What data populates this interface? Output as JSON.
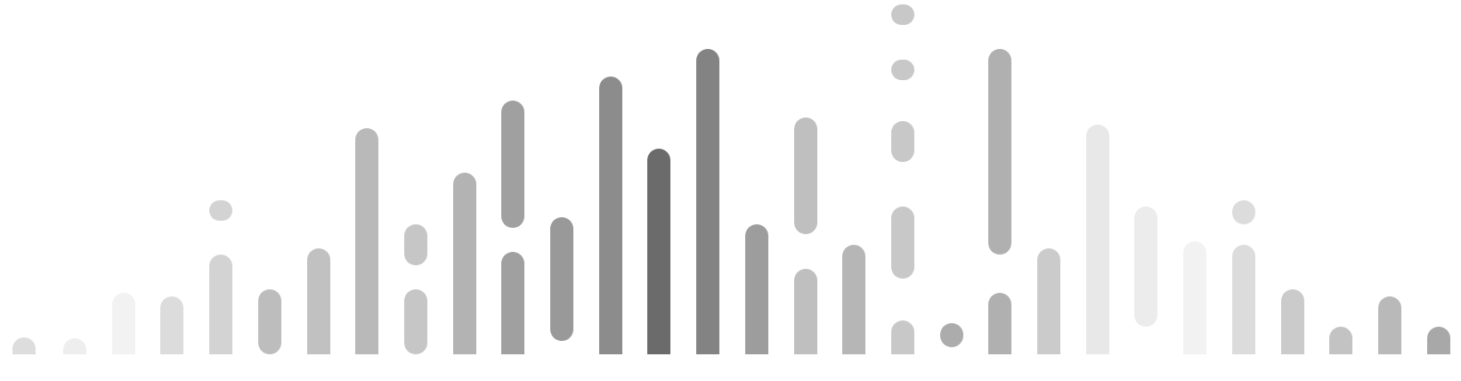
{
  "visualization": {
    "bars": [
      {
        "segments": [
          {
            "level": 0.05,
            "rounded_bottom": false
          }
        ],
        "shade": "#dddddd"
      },
      {
        "segments": [
          {
            "level": 0.03,
            "rounded_bottom": false
          }
        ],
        "shade": "#eeeeee"
      },
      {
        "segments": [
          {
            "level": 0.18,
            "rounded_bottom": false
          }
        ],
        "shade": "#f2f2f2"
      },
      {
        "segments": [
          {
            "level": 0.17,
            "rounded_bottom": false
          }
        ],
        "shade": "#dcdcdc"
      },
      {
        "segments": [
          {
            "level": 0.29,
            "rounded_bottom": false
          },
          {
            "level": 0.45,
            "rounded_bottom": true,
            "start": 0.39
          }
        ],
        "shade": "#d3d3d3"
      },
      {
        "segments": [
          {
            "level": 0.19,
            "rounded_bottom": true
          }
        ],
        "shade": "#bdbdbd"
      },
      {
        "segments": [
          {
            "level": 0.31,
            "rounded_bottom": false
          }
        ],
        "shade": "#c1c1c1"
      },
      {
        "segments": [
          {
            "level": 0.66,
            "rounded_bottom": false
          }
        ],
        "shade": "#b9b9b9"
      },
      {
        "segments": [
          {
            "level": 0.19,
            "rounded_bottom": true
          },
          {
            "level": 0.38,
            "rounded_bottom": true,
            "start": 0.26
          }
        ],
        "shade": "#c6c6c6"
      },
      {
        "segments": [
          {
            "level": 0.53,
            "rounded_bottom": false
          }
        ],
        "shade": "#b3b3b3"
      },
      {
        "segments": [
          {
            "level": 0.3,
            "rounded_bottom": false
          },
          {
            "level": 0.74,
            "rounded_bottom": true,
            "start": 0.37
          }
        ],
        "shade": "#a0a0a0"
      },
      {
        "segments": [
          {
            "level": 0.4,
            "rounded_bottom": true,
            "start": 0.04
          }
        ],
        "shade": "#999999"
      },
      {
        "segments": [
          {
            "level": 0.81,
            "rounded_bottom": false
          }
        ],
        "shade": "#8c8c8c"
      },
      {
        "segments": [
          {
            "level": 0.6,
            "rounded_bottom": false
          }
        ],
        "shade": "#6b6b6b"
      },
      {
        "segments": [
          {
            "level": 0.89,
            "rounded_bottom": false
          }
        ],
        "shade": "#838383"
      },
      {
        "segments": [
          {
            "level": 0.38,
            "rounded_bottom": false
          }
        ],
        "shade": "#9d9d9d"
      },
      {
        "segments": [
          {
            "level": 0.25,
            "rounded_bottom": false
          },
          {
            "level": 0.69,
            "rounded_bottom": true,
            "start": 0.35
          }
        ],
        "shade": "#bfbfbf"
      },
      {
        "segments": [
          {
            "level": 0.32,
            "rounded_bottom": false
          }
        ],
        "shade": "#b6b6b6"
      },
      {
        "segments": [
          {
            "level": 0.1,
            "rounded_bottom": false
          },
          {
            "level": 0.43,
            "rounded_bottom": true,
            "start": 0.22
          },
          {
            "level": 0.68,
            "rounded_bottom": true,
            "start": 0.56
          },
          {
            "level": 0.86,
            "rounded_bottom": true,
            "start": 0.8
          },
          {
            "level": 1.02,
            "rounded_bottom": true,
            "start": 0.96
          }
        ],
        "shade": "#c8c8c8"
      },
      {
        "segments": [
          {
            "level": 0.09,
            "rounded_bottom": true,
            "start": 0.02
          }
        ],
        "shade": "#acacac"
      },
      {
        "segments": [
          {
            "level": 0.18,
            "rounded_bottom": false
          },
          {
            "level": 0.89,
            "rounded_bottom": true,
            "start": 0.29
          }
        ],
        "shade": "#b0b0b0"
      },
      {
        "segments": [
          {
            "level": 0.31,
            "rounded_bottom": false
          }
        ],
        "shade": "#cbcbcb"
      },
      {
        "segments": [
          {
            "level": 0.67,
            "rounded_bottom": false
          }
        ],
        "shade": "#e8e8e8"
      },
      {
        "segments": [
          {
            "level": 0.43,
            "rounded_bottom": true,
            "start": 0.08
          }
        ],
        "shade": "#ececec"
      },
      {
        "segments": [
          {
            "level": 0.33,
            "rounded_bottom": false
          }
        ],
        "shade": "#f2f2f2"
      },
      {
        "segments": [
          {
            "level": 0.32,
            "rounded_bottom": false
          },
          {
            "level": 0.45,
            "rounded_bottom": true,
            "start": 0.38
          }
        ],
        "shade": "#dcdcdc"
      },
      {
        "segments": [
          {
            "level": 0.19,
            "rounded_bottom": false
          }
        ],
        "shade": "#cbcbcb"
      },
      {
        "segments": [
          {
            "level": 0.08,
            "rounded_bottom": false
          }
        ],
        "shade": "#c3c3c3"
      },
      {
        "segments": [
          {
            "level": 0.17,
            "rounded_bottom": false
          }
        ],
        "shade": "#b9b9b9"
      },
      {
        "segments": [
          {
            "level": 0.08,
            "rounded_bottom": false
          }
        ],
        "shade": "#a8a8a8"
      }
    ]
  }
}
